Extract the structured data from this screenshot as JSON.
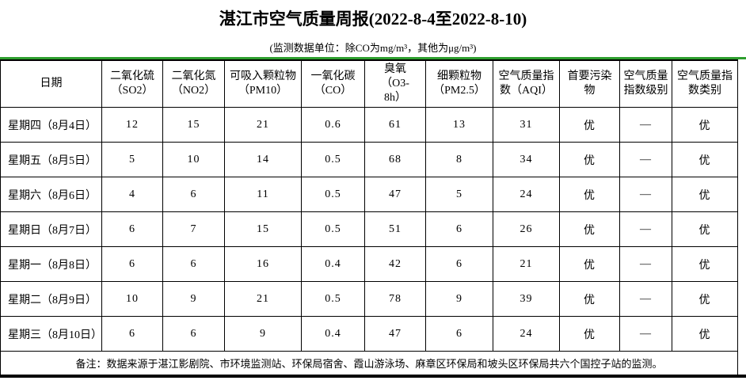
{
  "page": {
    "title": "湛江市空气质量周报(2022-8-4至2022-8-10)",
    "subtitle": "(监测数据单位：除CO为mg/m³，其他为μg/m³)"
  },
  "table": {
    "columns": [
      {
        "label": "日期"
      },
      {
        "label": "二氧化硫\n（SO2）"
      },
      {
        "label": "二氧化氮\n（NO2）"
      },
      {
        "label": "可吸入颗粒物\n（PM10）"
      },
      {
        "label": "一氧化碳\n（CO）"
      },
      {
        "label": "臭氧\n（O3-\n8h）"
      },
      {
        "label": "细颗粒物\n（PM2.5）"
      },
      {
        "label": "空气质量指\n数（AQI）"
      },
      {
        "label": "首要污染\n物"
      },
      {
        "label": "空气质量\n指数级别"
      },
      {
        "label": "空气质量指\n数类别"
      }
    ],
    "rows": [
      {
        "date": "星期四（8月4日）",
        "values": [
          "12",
          "15",
          "21",
          "0.6",
          "61",
          "13",
          "31",
          "优",
          "—",
          "优"
        ]
      },
      {
        "date": "星期五（8月5日）",
        "values": [
          "5",
          "10",
          "14",
          "0.5",
          "68",
          "8",
          "34",
          "优",
          "—",
          "优"
        ]
      },
      {
        "date": "星期六（8月6日）",
        "values": [
          "4",
          "6",
          "11",
          "0.5",
          "47",
          "5",
          "24",
          "优",
          "—",
          "优"
        ]
      },
      {
        "date": "星期日（8月7日）",
        "values": [
          "6",
          "7",
          "15",
          "0.5",
          "51",
          "6",
          "26",
          "优",
          "—",
          "优"
        ]
      },
      {
        "date": "星期一（8月8日）",
        "values": [
          "6",
          "6",
          "16",
          "0.4",
          "42",
          "6",
          "21",
          "优",
          "—",
          "优"
        ]
      },
      {
        "date": "星期二（8月9日）",
        "values": [
          "10",
          "9",
          "21",
          "0.5",
          "78",
          "9",
          "39",
          "优",
          "—",
          "优"
        ]
      },
      {
        "date": "星期三（8月10日）",
        "values": [
          "6",
          "6",
          "9",
          "0.4",
          "47",
          "6",
          "24",
          "优",
          "—",
          "优"
        ]
      }
    ],
    "note": "备注：数据来源于湛江影剧院、市环境监测站、环保局宿舍、霞山游泳场、麻章区环保局和坡头区环保局共六个国控子站的监测。"
  },
  "colors": {
    "accent_green": "#2e9e2e",
    "border": "#000000",
    "background": "#ffffff",
    "text": "#000000"
  }
}
